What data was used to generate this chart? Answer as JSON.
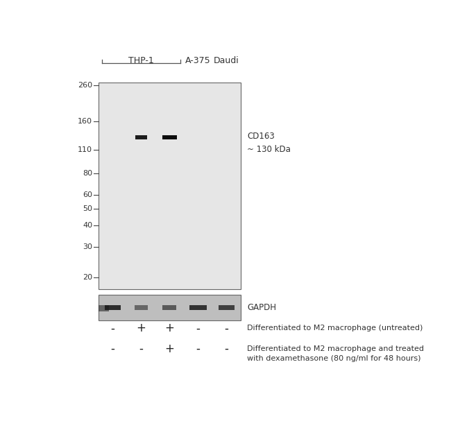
{
  "white": "#ffffff",
  "gel_bg": "#e6e6e6",
  "gapdh_bg": "#c8c8c8",
  "mw_labels": [
    "260",
    "160",
    "110",
    "80",
    "60",
    "50",
    "40",
    "30",
    "20"
  ],
  "mw_values": [
    260,
    160,
    110,
    80,
    60,
    50,
    40,
    30,
    20
  ],
  "cd163_annotation": "CD163\n~ 130 kDa",
  "gapdh_annotation": "GAPDH",
  "row1_labels": [
    "-",
    "+",
    "+",
    "-",
    "-"
  ],
  "row2_labels": [
    "-",
    "-",
    "+",
    "-",
    "-"
  ],
  "row1_text": "Differentiated to M2 macrophage (untreated)",
  "row2_text": "Differentiated to M2 macrophage and treated\nwith dexamethasone (80 ng/ml for 48 hours)"
}
